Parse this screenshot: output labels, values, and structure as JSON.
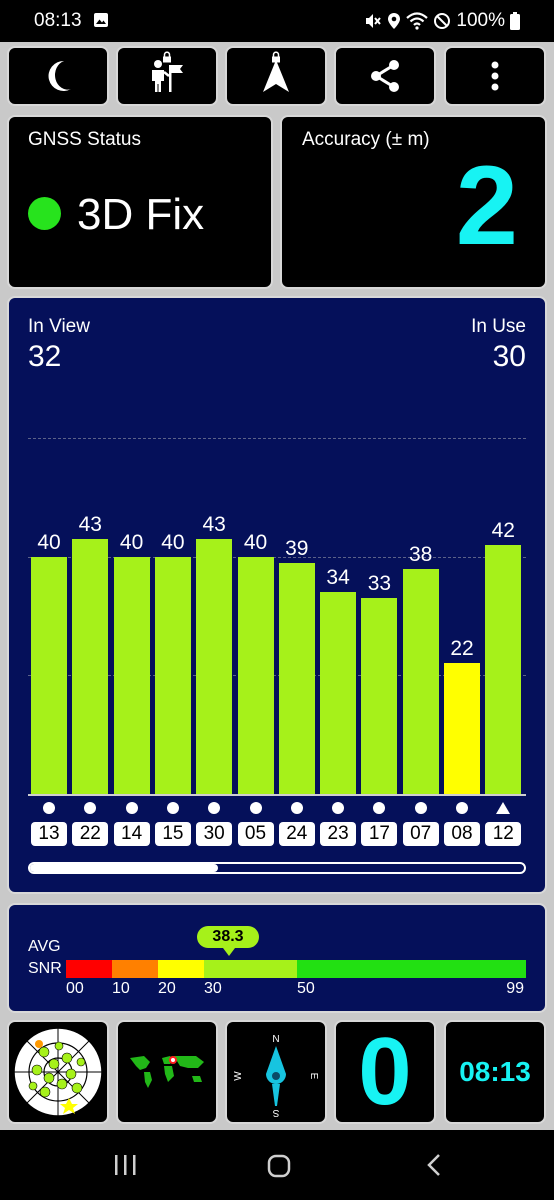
{
  "status_bar": {
    "time": "08:13",
    "battery_text": "100%",
    "icons": [
      "image-icon",
      "mute-icon",
      "location-icon",
      "wifi-icon",
      "dnd-icon",
      "battery-icon"
    ]
  },
  "toolbar": {
    "buttons": [
      {
        "name": "night-mode",
        "icon": "moon-icon",
        "locked": false
      },
      {
        "name": "waypoints",
        "icon": "person-flag-icon",
        "locked": true
      },
      {
        "name": "navigate",
        "icon": "navigation-arrow-icon",
        "locked": true
      },
      {
        "name": "share",
        "icon": "share-icon",
        "locked": false
      },
      {
        "name": "more",
        "icon": "more-vert-icon",
        "locked": false
      }
    ]
  },
  "gnss_status": {
    "label": "GNSS Status",
    "value": "3D Fix",
    "indicator_color": "#27e31d"
  },
  "accuracy": {
    "label": "Accuracy (± m)",
    "value": "2",
    "color": "#17f3f3"
  },
  "sky": {
    "in_view_label": "In View",
    "in_view": "32",
    "in_use_label": "In Use",
    "in_use": "30"
  },
  "chart_data": {
    "type": "bar",
    "categories": [
      "13",
      "22",
      "14",
      "15",
      "30",
      "05",
      "24",
      "23",
      "17",
      "07",
      "08",
      "12"
    ],
    "values": [
      40,
      43,
      40,
      40,
      43,
      40,
      39,
      34,
      33,
      38,
      22,
      42
    ],
    "markers": [
      "dot",
      "dot",
      "dot",
      "dot",
      "dot",
      "dot",
      "dot",
      "dot",
      "dot",
      "dot",
      "dot",
      "triangle"
    ],
    "colors": [
      "#a6f11a",
      "#a6f11a",
      "#a6f11a",
      "#a6f11a",
      "#a6f11a",
      "#a6f11a",
      "#a6f11a",
      "#a6f11a",
      "#a6f11a",
      "#a6f11a",
      "#ffff00",
      "#a6f11a"
    ],
    "ylim": [
      0,
      60
    ],
    "gridlines": [
      20,
      40,
      60
    ]
  },
  "scroll": {
    "thumb_fraction": 0.38
  },
  "avg_snr": {
    "label_line1": "AVG",
    "label_line2": "SNR",
    "value": "38.3",
    "scale": [
      {
        "from": 0,
        "to": 10,
        "color": "#ff0000",
        "tick": "00"
      },
      {
        "from": 10,
        "to": 20,
        "color": "#ff8000",
        "tick": "10"
      },
      {
        "from": 20,
        "to": 30,
        "color": "#ffff00",
        "tick": "20"
      },
      {
        "from": 30,
        "to": 50,
        "color": "#a6f11a",
        "tick": "30"
      },
      {
        "from": 50,
        "to": 99,
        "color": "#22e012",
        "tick": "50"
      }
    ],
    "max_tick": "99"
  },
  "bottom": {
    "sats_count": "0",
    "clock": "08:13",
    "compass": {
      "n": "N",
      "e": "E",
      "s": "S",
      "w": "W"
    }
  }
}
